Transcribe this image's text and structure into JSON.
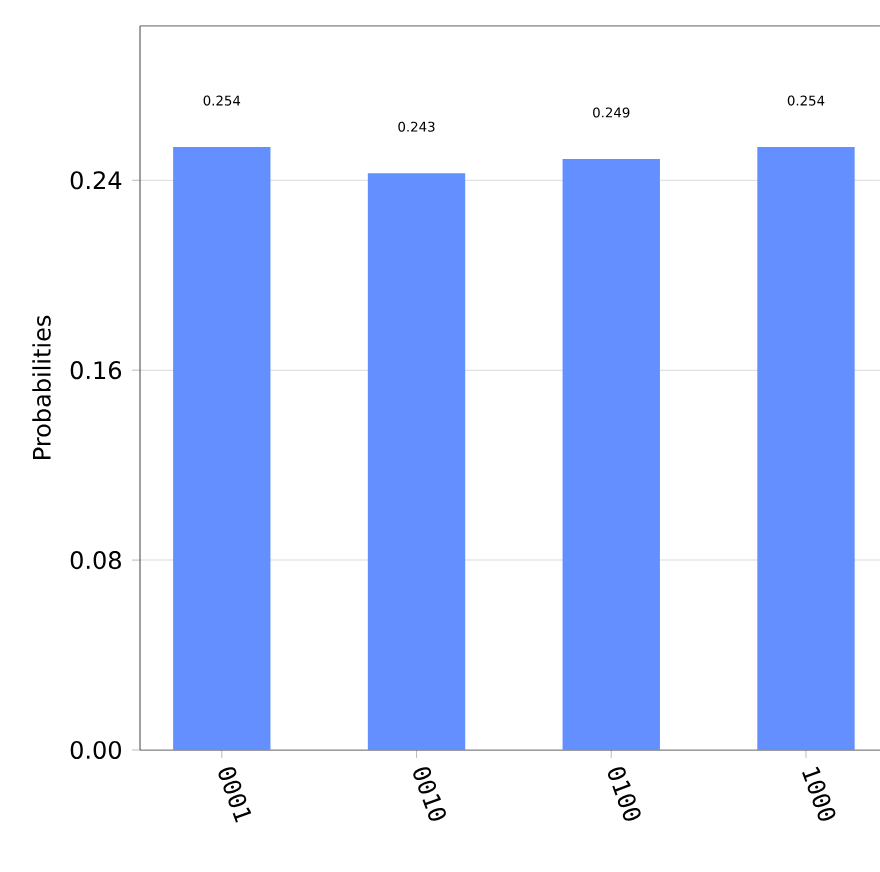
{
  "chart_data": {
    "type": "bar",
    "ylabel": "Probabilities",
    "categories": [
      "0001",
      "0010",
      "0100",
      "1000"
    ],
    "values": [
      0.254,
      0.243,
      0.249,
      0.254
    ],
    "color": "#648fff",
    "data_labels": true,
    "grid": "y",
    "ylim": [
      0,
      0.305
    ],
    "yticks": [
      {
        "value": 0,
        "label": "0.00"
      },
      0.08,
      0.16,
      0.24
    ]
  }
}
